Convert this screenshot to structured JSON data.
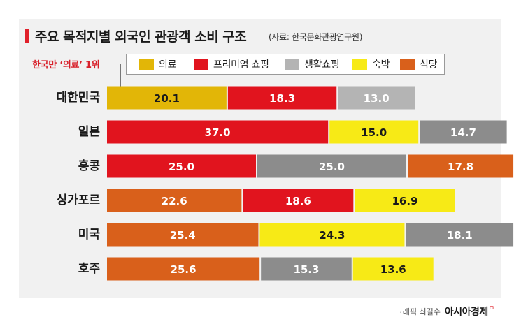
{
  "header": {
    "title": "주요 목적지별 외국인 관광객 소비 구조",
    "source": "(자료: 한국문화관광연구원)"
  },
  "annotation": "한국만 ‘의료’ 1위",
  "footer": {
    "credit": "그래픽 최길수",
    "brand": "아시아경제",
    "brand_mark": "ㅁ"
  },
  "chart_data": {
    "type": "bar",
    "orientation": "horizontal",
    "stacked": true,
    "legend_position": "top",
    "legend": [
      {
        "name": "의료",
        "color": "#e2b607"
      },
      {
        "name": "프리미엄 쇼핑",
        "color": "#e1141e"
      },
      {
        "name": "생활쇼핑",
        "color": "#b4b4b4"
      },
      {
        "name": "숙박",
        "color": "#f7ea16"
      },
      {
        "name": "식당",
        "color": "#d9601b"
      }
    ],
    "categories": [
      "대한민국",
      "일본",
      "홍콩",
      "싱가포르",
      "미국",
      "호주"
    ],
    "rows": [
      {
        "category": "대한민국",
        "segments": [
          {
            "series": "의료",
            "value": 20.1,
            "color": "#e2b607"
          },
          {
            "series": "프리미엄 쇼핑",
            "value": 18.3,
            "color": "#e1141e"
          },
          {
            "series": "생활쇼핑",
            "value": 13.0,
            "color": "#b4b4b4"
          }
        ]
      },
      {
        "category": "일본",
        "segments": [
          {
            "series": "프리미엄 쇼핑",
            "value": 37.0,
            "color": "#e1141e"
          },
          {
            "series": "숙박",
            "value": 15.0,
            "color": "#f7ea16"
          },
          {
            "series": "생활쇼핑",
            "value": 14.7,
            "color": "#8c8c8c"
          }
        ]
      },
      {
        "category": "홍콩",
        "segments": [
          {
            "series": "프리미엄 쇼핑",
            "value": 25.0,
            "color": "#e1141e"
          },
          {
            "series": "생활쇼핑",
            "value": 25.0,
            "color": "#8c8c8c"
          },
          {
            "series": "식당",
            "value": 17.8,
            "color": "#d9601b"
          }
        ]
      },
      {
        "category": "싱가포르",
        "segments": [
          {
            "series": "식당",
            "value": 22.6,
            "color": "#d9601b"
          },
          {
            "series": "프리미엄 쇼핑",
            "value": 18.6,
            "color": "#e1141e"
          },
          {
            "series": "숙박",
            "value": 16.9,
            "color": "#f7ea16"
          }
        ]
      },
      {
        "category": "미국",
        "segments": [
          {
            "series": "식당",
            "value": 25.4,
            "color": "#d9601b"
          },
          {
            "series": "숙박",
            "value": 24.3,
            "color": "#f7ea16"
          },
          {
            "series": "생활쇼핑",
            "value": 18.1,
            "color": "#8c8c8c"
          }
        ]
      },
      {
        "category": "호주",
        "segments": [
          {
            "series": "식당",
            "value": 25.6,
            "color": "#d9601b"
          },
          {
            "series": "생활쇼핑",
            "value": 15.3,
            "color": "#8c8c8c"
          },
          {
            "series": "숙박",
            "value": 13.6,
            "color": "#f7ea16"
          }
        ]
      }
    ]
  }
}
